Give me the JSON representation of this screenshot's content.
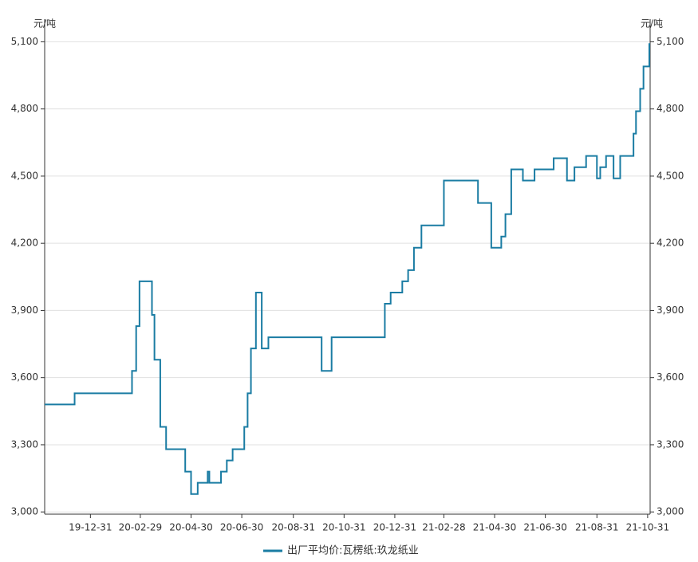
{
  "chart_data": {
    "type": "line",
    "step": true,
    "y_label": "元/吨",
    "y2_label": "元/吨",
    "x": [
      "19-11-06",
      "19-12-12",
      "20-02-19",
      "20-02-24",
      "20-02-28",
      "20-03-14",
      "20-03-17",
      "20-03-24",
      "20-03-31",
      "20-04-23",
      "20-04-30",
      "20-05-08",
      "20-05-20",
      "20-05-22",
      "20-06-05",
      "20-06-12",
      "20-06-19",
      "20-07-03",
      "20-07-07",
      "20-07-11",
      "20-07-17",
      "20-07-24",
      "20-08-01",
      "20-10-04",
      "20-10-16",
      "20-12-19",
      "20-12-26",
      "21-01-09",
      "21-01-16",
      "21-01-23",
      "21-02-01",
      "21-02-28",
      "21-04-10",
      "21-04-26",
      "21-05-08",
      "21-05-13",
      "21-05-20",
      "21-06-03",
      "21-06-17",
      "21-07-10",
      "21-07-26",
      "21-08-04",
      "21-08-18",
      "21-08-31",
      "21-09-04",
      "21-09-11",
      "21-09-20",
      "21-09-28",
      "21-10-14",
      "21-10-17",
      "21-10-22",
      "21-10-26",
      "21-11-02",
      "21-11-03"
    ],
    "series": [
      {
        "name": "出厂平均价:瓦楞纸:玖龙纸业",
        "color": "#1a7ca3",
        "values": [
          3480,
          3530,
          3630,
          3830,
          4030,
          3880,
          3680,
          3380,
          3280,
          3180,
          3080,
          3130,
          3180,
          3130,
          3180,
          3230,
          3280,
          3380,
          3530,
          3730,
          3980,
          3730,
          3780,
          3630,
          3780,
          3930,
          3980,
          4030,
          4080,
          4180,
          4280,
          4480,
          4380,
          4180,
          4230,
          4330,
          4530,
          4480,
          4530,
          4580,
          4480,
          4540,
          4590,
          4490,
          4540,
          4590,
          4490,
          4590,
          4690,
          4790,
          4890,
          4990,
          5090,
          5090
        ]
      }
    ],
    "xlim": [
      "19-11-06",
      "21-11-03"
    ],
    "xticks": [
      "19-12-31",
      "20-02-29",
      "20-04-30",
      "20-06-30",
      "20-08-31",
      "20-10-31",
      "20-12-31",
      "21-02-28",
      "21-04-30",
      "21-06-30",
      "21-08-31",
      "21-10-31"
    ],
    "ylim": [
      2990,
      5130
    ],
    "yticks": [
      {
        "value": 3000,
        "label": "3,000"
      },
      {
        "value": 3300,
        "label": "3,300"
      },
      {
        "value": 3600,
        "label": "3,600"
      },
      {
        "value": 3900,
        "label": "3,900"
      },
      {
        "value": 4200,
        "label": "4,200"
      },
      {
        "value": 4500,
        "label": "4,500"
      },
      {
        "value": 4800,
        "label": "4,800"
      },
      {
        "value": 5100,
        "label": "5,100"
      }
    ],
    "y2lim": [
      2990,
      5130
    ],
    "y2ticks": [
      {
        "value": 3000,
        "label": "3,000"
      },
      {
        "value": 3300,
        "label": "3,300"
      },
      {
        "value": 3600,
        "label": "3,600"
      },
      {
        "value": 3900,
        "label": "3,900"
      },
      {
        "value": 4200,
        "label": "4,200"
      },
      {
        "value": 4500,
        "label": "4,500"
      },
      {
        "value": 4800,
        "label": "4,800"
      },
      {
        "value": 5100,
        "label": "5,100"
      }
    ],
    "grid": true,
    "legend": "bottom"
  }
}
